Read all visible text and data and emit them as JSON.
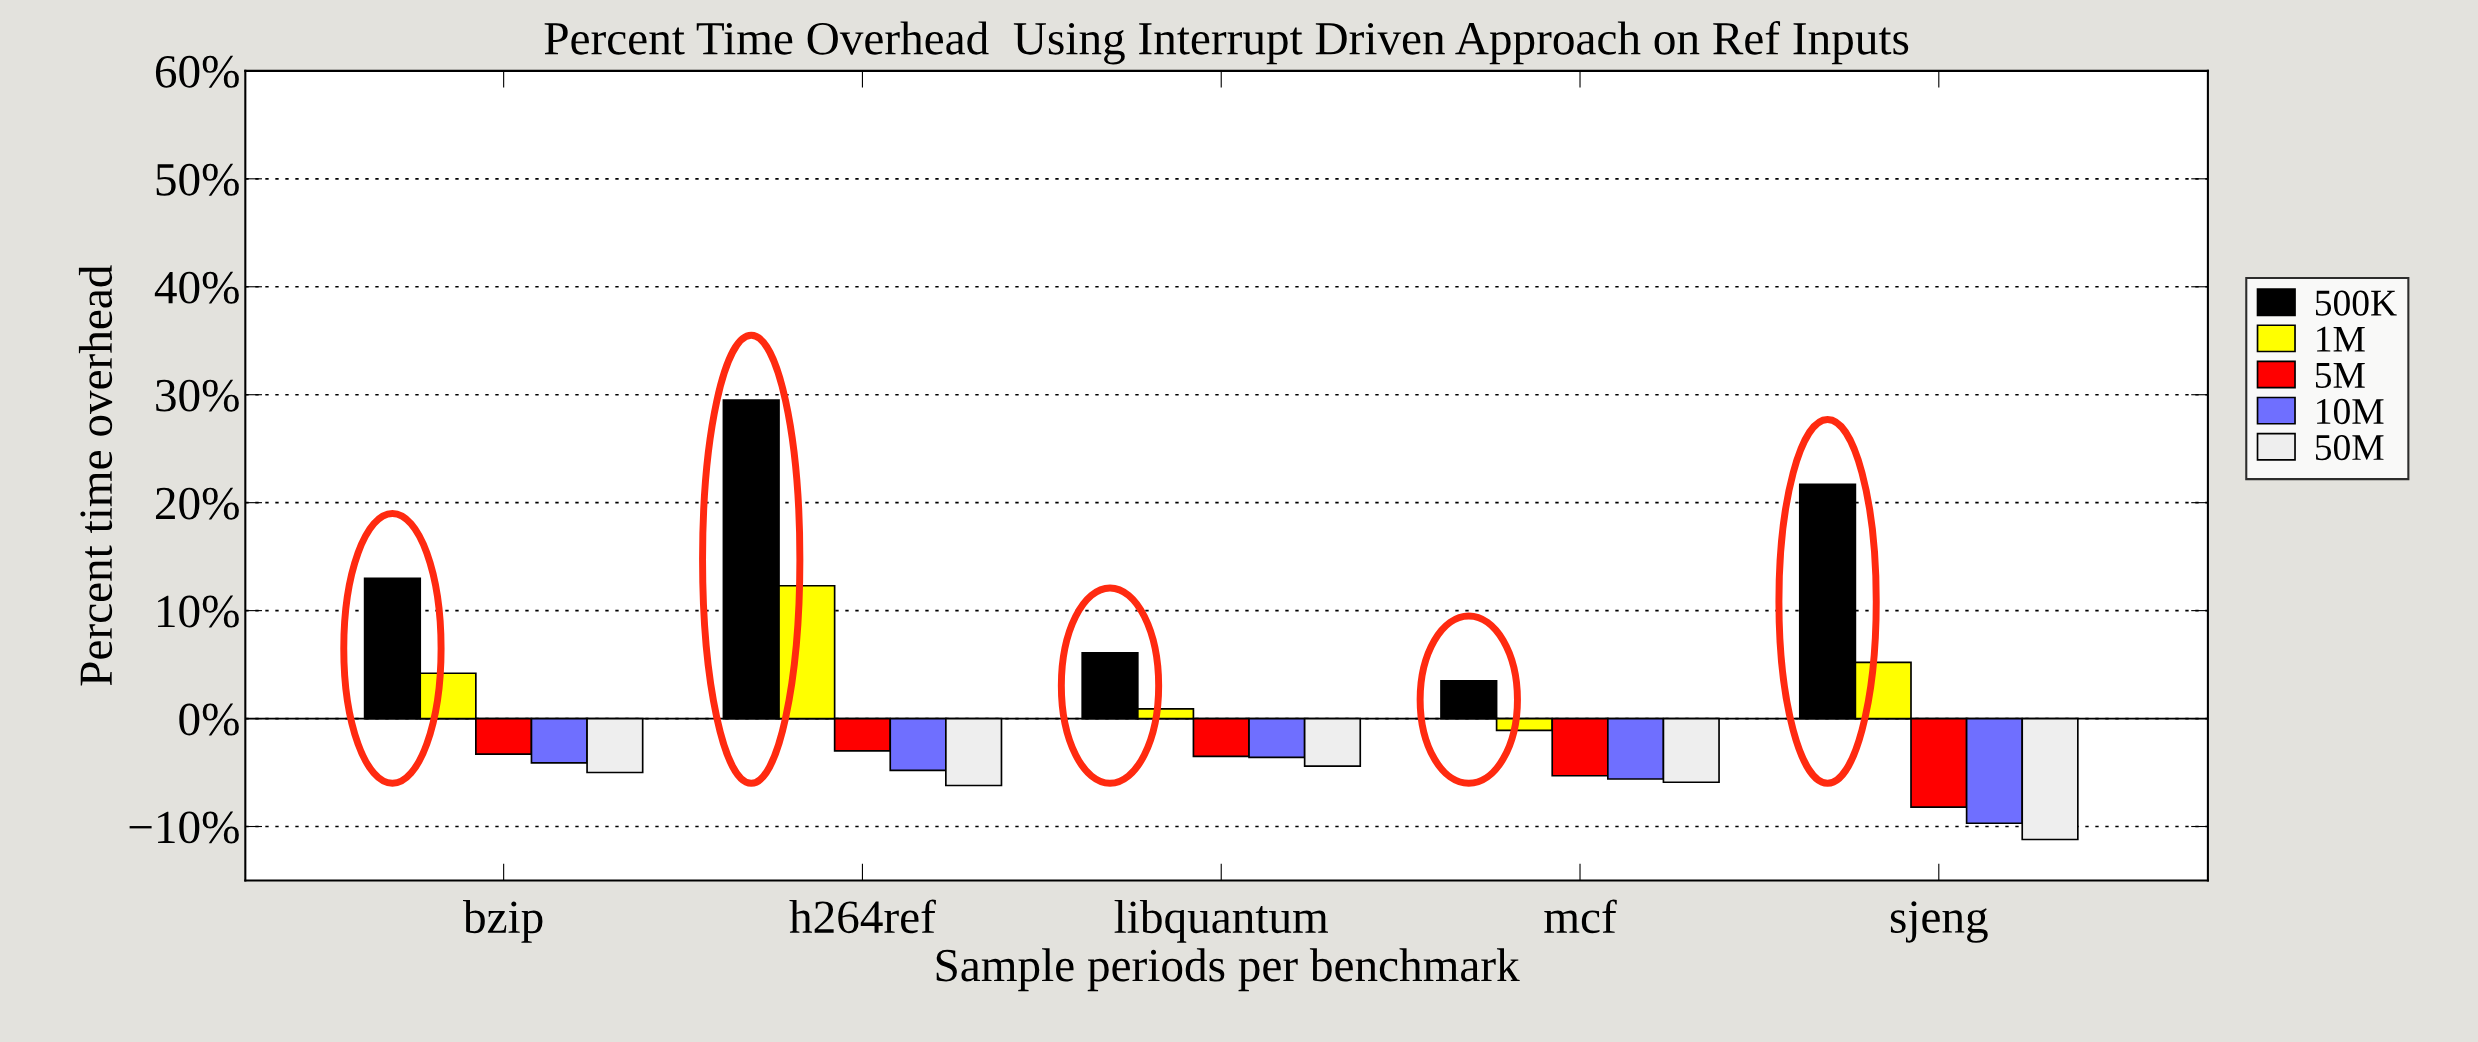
{
  "chart_data": {
    "type": "bar",
    "title": "Percent Time Overhead  Using Interrupt Driven Approach on Ref Inputs",
    "xlabel": "Sample periods per benchmark",
    "ylabel": "Percent time overhead",
    "categories": [
      "bzip",
      "h264ref",
      "libquantum",
      "mcf",
      "sjeng"
    ],
    "series": [
      {
        "name": "500K",
        "color": "#000000",
        "values": [
          13.0,
          29.5,
          6.1,
          3.5,
          21.7
        ]
      },
      {
        "name": "1M",
        "color": "#ffff00",
        "values": [
          4.2,
          12.3,
          0.9,
          -1.1,
          5.2
        ]
      },
      {
        "name": "5M",
        "color": "#ff0000",
        "values": [
          -3.3,
          -3.0,
          -3.5,
          -5.3,
          -8.2
        ]
      },
      {
        "name": "10M",
        "color": "#6f6fff",
        "values": [
          -4.1,
          -4.8,
          -3.6,
          -5.6,
          -9.7
        ]
      },
      {
        "name": "50M",
        "color": "#eeeeee",
        "values": [
          -5.0,
          -6.2,
          -4.4,
          -5.9,
          -11.2
        ]
      }
    ],
    "ylim": [
      -15,
      60
    ],
    "yticks": [
      {
        "value": -10,
        "label": "−10%"
      },
      {
        "value": 0,
        "label": "0%"
      },
      {
        "value": 10,
        "label": "10%"
      },
      {
        "value": 20,
        "label": "20%"
      },
      {
        "value": 30,
        "label": "30%"
      },
      {
        "value": 40,
        "label": "40%"
      },
      {
        "value": 50,
        "label": "50%"
      },
      {
        "value": 60,
        "label": "60%"
      }
    ],
    "grid": "y",
    "legend": "right"
  }
}
